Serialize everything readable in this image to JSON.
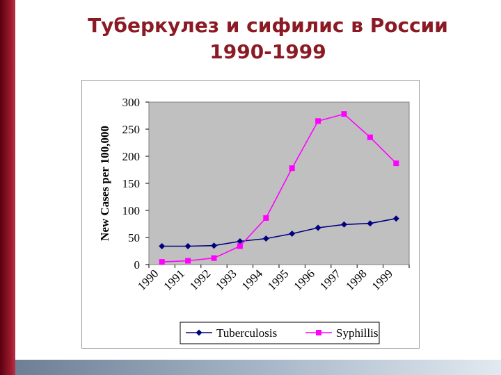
{
  "slide": {
    "title_line1": "Туберкулез и сифилис в России",
    "title_line2": "1990-1999",
    "colors": {
      "title": "#8b1a24",
      "accent_bar": "#9a1a2c",
      "bottom_bar": "#8fa0b4"
    }
  },
  "chart_data": {
    "type": "line",
    "title": "",
    "xlabel": "",
    "ylabel": "New Cases per 100,000",
    "categories": [
      "1990",
      "1991",
      "1992",
      "1993",
      "1994",
      "1995",
      "1996",
      "1997",
      "1998",
      "1999"
    ],
    "ylim": [
      0,
      300
    ],
    "yticks": [
      "0",
      "50",
      "100",
      "150",
      "200",
      "250",
      "300"
    ],
    "grid": false,
    "legend": "bottom",
    "plot_background": "#c0c0c0",
    "series": [
      {
        "name": "Tuberculosis",
        "color": "#000080",
        "marker": "diamond",
        "values": [
          34,
          34,
          35,
          43,
          48,
          57,
          68,
          74,
          76,
          85
        ]
      },
      {
        "name": "Syphillis",
        "color": "#ff00ff",
        "marker": "square",
        "values": [
          5,
          7,
          12,
          34,
          86,
          178,
          265,
          278,
          235,
          187
        ]
      }
    ]
  }
}
